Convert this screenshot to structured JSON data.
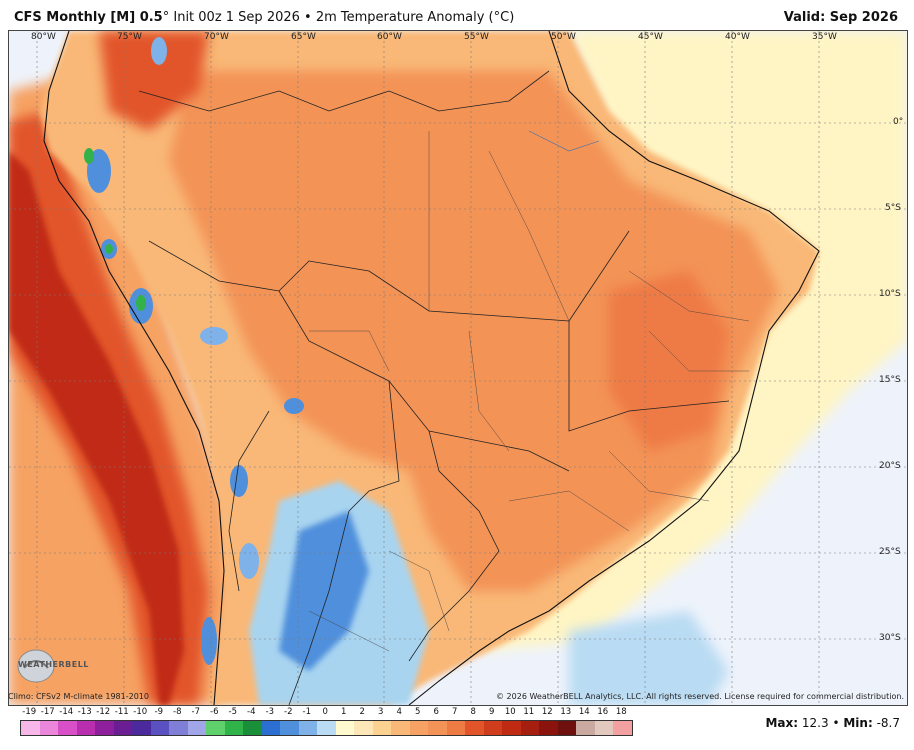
{
  "header": {
    "model": "CFS Monthly [M] 0.5",
    "degree_mark": "°",
    "init": " Init 00z 1 Sep 2026",
    "bullet": " • ",
    "field": "2m Temperature Anomaly (°C)",
    "valid": "Valid: Sep 2026"
  },
  "map": {
    "region": "South America",
    "longitude_labels": [
      "80°W",
      "75°W",
      "70°W",
      "65°W",
      "60°W",
      "55°W",
      "50°W",
      "45°W",
      "40°W",
      "35°W"
    ],
    "latitude_labels": [
      "0°",
      "5°S",
      "10°S",
      "15°S",
      "20°S",
      "25°S",
      "30°S"
    ],
    "colors": {
      "ocean": "#eef3fb",
      "warm_light": "#fde6b8",
      "warm_mid": "#f9b877",
      "warm_strong": "#f39357",
      "hot": "#e2552b",
      "very_hot": "#c02a12",
      "cool": "#a8d4f0",
      "cold": "#4f8fdc",
      "green": "#33b24a"
    }
  },
  "footer": {
    "climo": "Climo: CFSv2 M-climate 1981-2010",
    "copyright": "© 2026 WeatherBELL Analytics, LLC. All rights reserved. License required for commercial distribution.",
    "logo_text": "WEATHERBELL"
  },
  "colorbar": {
    "ticks": [
      "-19",
      "-17",
      "-14",
      "-13",
      "-12",
      "-11",
      "-10",
      "-9",
      "-8",
      "-7",
      "-6",
      "-5",
      "-4",
      "-3",
      "-2",
      "-1",
      "0",
      "1",
      "2",
      "3",
      "4",
      "5",
      "6",
      "7",
      "8",
      "9",
      "10",
      "11",
      "12",
      "13",
      "14",
      "16",
      "18"
    ],
    "colors": [
      "#f7b8e9",
      "#ec86db",
      "#d94fc7",
      "#b92eae",
      "#8f209d",
      "#6b1d94",
      "#4b2a9e",
      "#5a50c0",
      "#7f7fd8",
      "#a0a6e8",
      "#5fd16a",
      "#2fb44a",
      "#1a8f3a",
      "#2b6fd1",
      "#4f8fdc",
      "#7eb2e8",
      "#b9dbf3",
      "#fff9cf",
      "#fde6b8",
      "#fbd28f",
      "#f9b877",
      "#f6a264",
      "#f39357",
      "#ee7a44",
      "#e2552b",
      "#d03d1d",
      "#c02a12",
      "#a51e10",
      "#8a140d",
      "#6e100e",
      "#c9a9a0",
      "#e3c8c0",
      "#f3a0a0"
    ]
  },
  "stats": {
    "max_label": "Max:",
    "max_value": "12.3",
    "separator": "•",
    "min_label": "Min:",
    "min_value": "-8.7"
  }
}
